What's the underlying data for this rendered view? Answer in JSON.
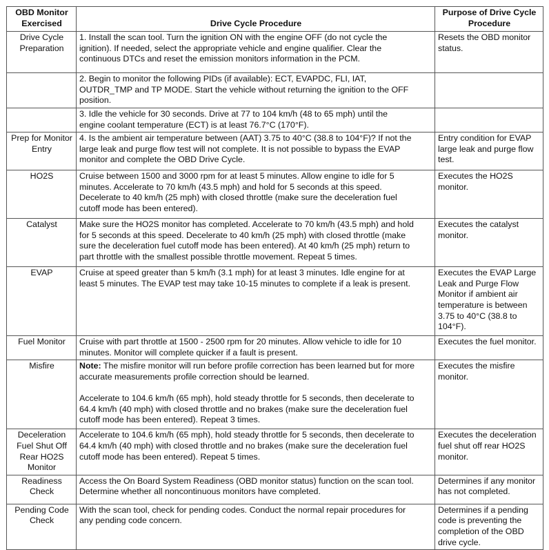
{
  "headers": [
    "OBD Monitor\nExercised",
    "Drive Cycle Procedure",
    "Purpose of Drive Cycle\nProcedure"
  ],
  "rows": [
    {
      "monitor": "Drive Cycle\nPreparation",
      "procedure": "1. Install the scan tool. Turn the ignition ON with the engine OFF (do not cycle the\nignition). If needed, select the appropriate vehicle and engine qualifier. Clear the\ncontinuous DTCs and reset the emission monitors information in the PCM.",
      "purpose": "Resets the OBD monitor\nstatus."
    },
    {
      "monitor": "",
      "procedure": "2. Begin to monitor the following PIDs (if available): ECT, EVAPDC, FLI, IAT,\nOUTDR_TMP and TP MODE. Start the vehicle without returning the ignition to the OFF\nposition.",
      "purpose": ""
    },
    {
      "monitor": "",
      "procedure": "3. Idle the vehicle for 30 seconds. Drive at 77 to 104 km/h (48 to 65 mph) until the\nengine coolant temperature (ECT) is at least 76.7°C (170°F).",
      "purpose": ""
    },
    {
      "monitor": "Prep for Monitor\nEntry",
      "procedure": "4. Is the ambient air temperature between (AAT) 3.75 to 40°C (38.8 to 104°F)? If not the\nlarge leak and purge flow test will not complete. It is not possible to bypass the EVAP\nmonitor and complete the OBD Drive Cycle.",
      "purpose": "Entry condition for EVAP\nlarge leak and purge flow\ntest."
    },
    {
      "monitor": "HO2S",
      "procedure": "Cruise between 1500 and 3000 rpm for at least 5 minutes. Allow engine to idle for 5\nminutes. Accelerate to 70 km/h (43.5 mph) and hold for 5 seconds at this speed.\nDecelerate to 40 km/h (25 mph) with closed throttle (make sure the deceleration fuel\ncutoff mode has been entered).",
      "purpose": "Executes the HO2S\nmonitor."
    },
    {
      "monitor": "Catalyst",
      "procedure": "Make sure the HO2S monitor has completed. Accelerate to 70 km/h (43.5 mph) and hold\nfor 5 seconds at this speed. Decelerate to 40 km/h (25 mph) with closed throttle (make\nsure the deceleration fuel cutoff mode has been entered). At 40 km/h (25 mph) return to\npart throttle with the smallest possible throttle movement. Repeat 5 times.",
      "purpose": "Executes the catalyst\nmonitor."
    },
    {
      "monitor": "EVAP",
      "procedure": "Cruise at speed greater than 5 km/h (3.1 mph) for at least 3 minutes. Idle engine for at\nleast 5 minutes. The EVAP test may take 10-15 minutes to complete if a leak is present.",
      "purpose": "Executes the EVAP Large\nLeak and Purge Flow\nMonitor if ambient air\ntemperature is between\n3.75 to 40°C (38.8 to\n104°F)."
    },
    {
      "monitor": "Fuel Monitor",
      "procedure": "Cruise with part throttle at 1500 - 2500 rpm for 20 minutes. Allow vehicle to idle for 10\nminutes. Monitor will complete quicker if a fault is present.",
      "purpose": "Executes the fuel monitor."
    },
    {
      "monitor": "Misfire",
      "note_label": "Note:",
      "note": " The misfire monitor will run before profile correction has been learned but for more\naccurate measurements profile correction should be learned.",
      "procedure": "Accelerate to 104.6 km/h (65 mph), hold steady throttle for 5 seconds, then decelerate to\n64.4 km/h (40 mph) with closed throttle and no brakes (make sure the deceleration fuel\ncutoff mode has been entered). Repeat 3 times.",
      "purpose": "Executes the misfire\nmonitor."
    },
    {
      "monitor": "Deceleration\nFuel Shut Off\nRear HO2S\nMonitor",
      "procedure": "Accelerate to 104.6 km/h (65 mph), hold steady throttle for 5 seconds, then decelerate to\n64.4 km/h (40 mph) with closed throttle and no brakes (make sure the deceleration fuel\ncutoff mode has been entered). Repeat 5 times.",
      "purpose": "Executes the deceleration\nfuel shut off rear HO2S\nmonitor."
    },
    {
      "monitor": "Readiness\nCheck",
      "procedure": "Access the On Board System Readiness (OBD monitor status) function on the scan tool.\nDetermine whether all noncontinuous monitors have completed.",
      "purpose": "Determines if any monitor\nhas not completed."
    },
    {
      "monitor": "Pending Code\nCheck",
      "procedure": "With the scan tool, check for pending codes. Conduct the normal repair procedures for\nany pending code concern.",
      "purpose": "Determines if a pending\ncode is preventing the\ncompletion of the OBD\ndrive cycle."
    }
  ]
}
